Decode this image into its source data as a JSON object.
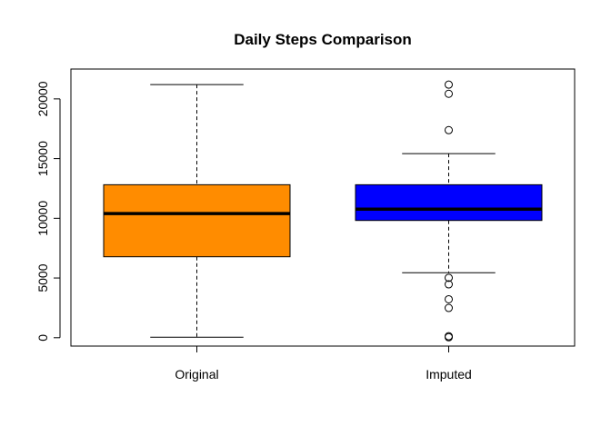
{
  "chart_data": {
    "type": "box",
    "title": "Daily Steps Comparison",
    "xlabel": "",
    "ylabel": "",
    "ylim": [
      -700,
      22500
    ],
    "y_ticks": [
      0,
      5000,
      10000,
      15000,
      20000
    ],
    "categories": [
      "Original",
      "Imputed"
    ],
    "boxes": [
      {
        "category": "Original",
        "fill": "#FF8C00",
        "whisker_low": 41,
        "q1": 6778,
        "median": 10395,
        "q3": 12811,
        "whisker_high": 21194,
        "outliers": []
      },
      {
        "category": "Imputed",
        "fill": "#0000FF",
        "whisker_low": 5441,
        "q1": 9819,
        "median": 10766,
        "q3": 12811,
        "whisker_high": 15420,
        "outliers": [
          20427,
          21194,
          17382,
          5018,
          4472,
          3219,
          2492,
          126,
          41
        ]
      }
    ],
    "grid": false,
    "legend": "none"
  }
}
